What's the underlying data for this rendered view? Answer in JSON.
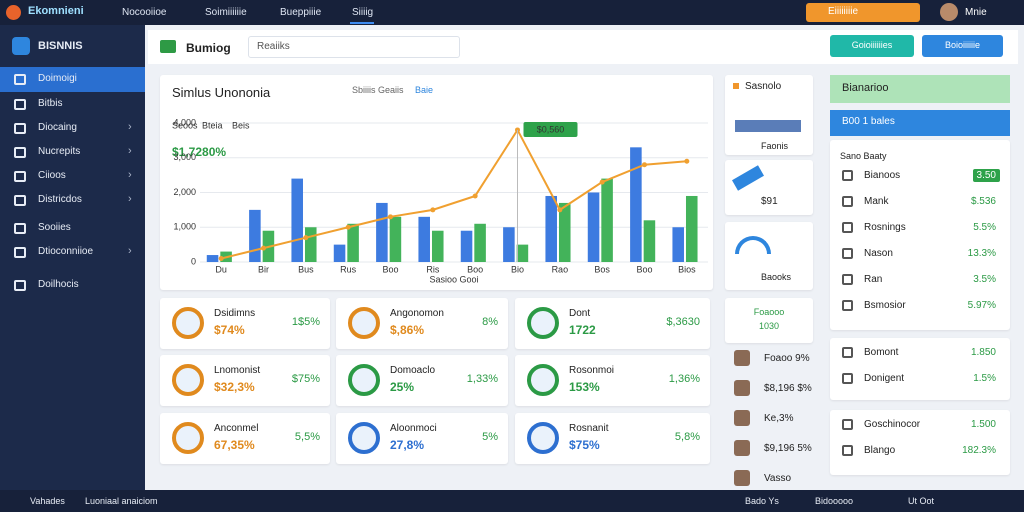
{
  "topbar": {
    "brand": "Ekomnieni",
    "tabs": [
      "Nocooiioe",
      "Soimiiiiiie",
      "Bueppiiie",
      "Siiiig"
    ],
    "action": "Eiiiiiiiie",
    "user": "Mnie"
  },
  "sidebar": {
    "title": "BISNNIS",
    "items": [
      "Doimoigi",
      "Bitbis",
      "Diocaing",
      "Nucrepits",
      "Ciioos",
      "Districdos",
      "Sooiies",
      "Dtioconniioe",
      "Doilhocis"
    ]
  },
  "header": {
    "title": "Bumiog",
    "search": "Reaiiks",
    "buttons": [
      "Goioiiiiiies",
      "Boioiiiiiie"
    ]
  },
  "chart_data": {
    "type": "bar",
    "title": "Simlus Unononia",
    "tabs": [
      "Sbiiiis Geaiis",
      "Baie"
    ],
    "headline": "$1,7280%",
    "callout": "$0,560",
    "x_label": "Sasioo Gooi",
    "categories": [
      "Du",
      "Bir",
      "Bus",
      "Rus",
      "Boo",
      "Ris",
      "Boo",
      "Bio",
      "Rao",
      "Bos",
      "Boo",
      "Bios"
    ],
    "series": [
      {
        "name": "Seoos",
        "color": "#3d7be0",
        "values": [
          200,
          1500,
          2400,
          500,
          1700,
          1300,
          900,
          1000,
          1900,
          2000,
          3300,
          1000
        ]
      },
      {
        "name": "Bteia",
        "color": "#43b35a",
        "values": [
          300,
          900,
          1000,
          1100,
          1300,
          900,
          1100,
          500,
          1700,
          2400,
          1200,
          1900
        ]
      },
      {
        "name": "Beis",
        "color": "#f0a030",
        "type": "line",
        "values": [
          100,
          400,
          700,
          1000,
          1300,
          1500,
          1900,
          3800,
          1500,
          2300,
          2800,
          2900
        ]
      }
    ],
    "ylim": [
      0,
      4000
    ],
    "yticks": [
      0,
      {
        "value": 1000,
        "label": "1,000"
      },
      {
        "value": 2000,
        "label": "2,000"
      },
      {
        "value": 3000,
        "label": "3,000"
      },
      {
        "value": 4000,
        "label": "4,000"
      }
    ],
    "grid": true
  },
  "cards": [
    {
      "title": "Dsidimns",
      "value": "$74%",
      "change": "1$5%",
      "color": "#e08a1e"
    },
    {
      "title": "Angonomon",
      "value": "$,86%",
      "change": "8%",
      "color": "#e08a1e"
    },
    {
      "title": "Dont",
      "value": "1722",
      "change": "$,3630",
      "color": "#2b9a45"
    },
    {
      "title": "Lnomonist",
      "value": "$32,3%",
      "change": "$75%",
      "color": "#e08a1e"
    },
    {
      "title": "Domoaclo",
      "value": "25%",
      "change": "1,33%",
      "color": "#2b9a45"
    },
    {
      "title": "Rosonmoi",
      "value": "153%",
      "change": "1,36%",
      "color": "#2b9a45"
    },
    {
      "title": "Anconmel",
      "value": "67,35%",
      "change": "5,5%",
      "color": "#e08a1e"
    },
    {
      "title": "Aloonmoci",
      "value": "27,8%",
      "change": "5%",
      "color": "#2d6fd0"
    },
    {
      "title": "Rosnanit",
      "value": "$75%",
      "change": "5,8%",
      "color": "#2d6fd0"
    }
  ],
  "side_list": {
    "title": "Sasnolo",
    "items": [
      "Faonis",
      "$91",
      "Baooks"
    ],
    "feature": {
      "title": "Foaooo",
      "value": "1030"
    },
    "people": [
      "Foaoo 9%",
      "$8,196 $%",
      "Ke,3%",
      "$9,196 5%",
      "Vasso"
    ]
  },
  "panel": {
    "title": "Bianarioo",
    "select": "B00 1 bales",
    "subtitle": "Sano Baaty",
    "rows": [
      {
        "label": "Bianoos",
        "value": "3.50"
      },
      {
        "label": "Mank",
        "value": "$.536"
      },
      {
        "label": "Rosnings",
        "value": "5.5%"
      },
      {
        "label": "Nason",
        "value": "13.3%"
      },
      {
        "label": "Ran",
        "value": "3.5%"
      },
      {
        "label": "Bsmosior",
        "value": "5.97%"
      }
    ],
    "rows2": [
      {
        "label": "Bomont",
        "value": "1.850"
      },
      {
        "label": "Donigent",
        "value": "1.5%"
      }
    ],
    "rows3": [
      {
        "label": "Goschinocor",
        "value": "1.500"
      },
      {
        "label": "Blango",
        "value": "182.3%"
      }
    ]
  },
  "footer": {
    "left": [
      "Vahades",
      "Luoniaal anaiciom"
    ],
    "right": [
      "Bado Ys",
      "Bidooooo",
      "Ut Oot"
    ]
  }
}
